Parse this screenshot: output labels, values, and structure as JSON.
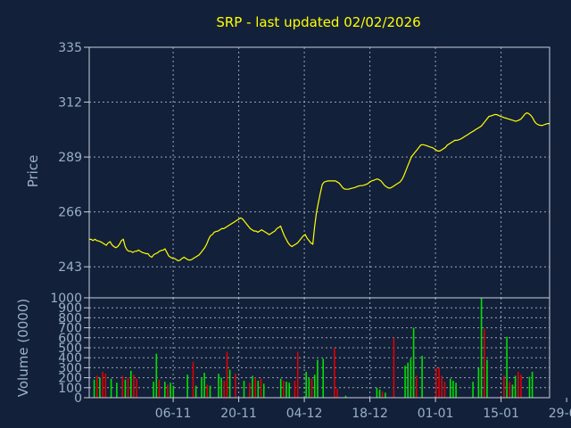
{
  "chart_data": [
    {
      "type": "line",
      "title": "SRP - last updated 02/02/2026",
      "ylabel": "Price",
      "ylim": [
        230,
        335
      ],
      "yticks": [
        243,
        266,
        289,
        312,
        335
      ],
      "grid": true,
      "line_color": "#ffff00",
      "x_index_range": [
        0,
        64
      ],
      "x_tick_index": [
        6,
        16,
        26,
        36,
        46,
        56,
        66
      ],
      "xtick_labels": [
        "06-11",
        "20-11",
        "04-12",
        "18-12",
        "01-01",
        "15-01",
        "29-01"
      ],
      "series": [
        {
          "values": [
            254.5,
            254.5,
            254,
            254.5,
            254,
            253.8,
            253.5,
            253,
            252.5,
            252,
            253,
            253.5,
            252.2,
            251.5,
            251,
            251.5,
            252.5,
            254,
            254.5,
            251.5,
            250,
            249.5,
            249.5,
            249,
            249.5,
            249.5,
            250,
            249.5,
            249,
            248.8,
            248.5,
            248.5,
            247.5,
            247,
            248,
            248.5,
            248.8,
            249.5,
            249.8,
            250,
            250.5,
            249,
            247.5,
            247,
            246.5,
            246.5,
            246,
            245.5,
            245.8,
            246.5,
            247,
            246.5,
            246,
            245.8,
            246,
            246.5,
            247,
            247.5,
            248,
            249,
            250,
            251,
            252.5,
            254.5,
            256,
            256.5,
            257.5,
            257.8,
            258,
            258.5,
            259,
            259,
            259.5,
            260,
            260.5,
            261,
            261.5,
            262,
            262.5,
            263,
            263.5,
            263,
            262,
            261,
            260,
            259,
            258.5,
            258,
            258,
            257.5,
            258,
            258.5,
            258,
            257.5,
            257,
            256.5,
            257,
            257.5,
            258,
            259,
            259.5,
            260,
            258,
            256,
            254.5,
            253,
            252,
            251.5,
            252,
            252.5,
            253,
            254,
            255,
            256,
            256.5,
            255,
            254,
            253,
            252.5,
            260,
            266,
            270,
            274,
            277.5,
            278.5,
            278.8,
            279,
            279,
            279,
            279,
            279,
            278.5,
            278,
            277,
            276,
            275.5,
            275.5,
            275.5,
            275.8,
            276,
            276.2,
            276.5,
            276.8,
            277,
            277,
            277.2,
            277.5,
            277.8,
            278.5,
            279,
            279.2,
            279.5,
            279.8,
            279.5,
            279,
            278,
            277,
            276.5,
            276,
            276,
            276.5,
            277,
            277.5,
            278,
            278.5,
            279.5,
            281,
            283,
            285,
            287,
            289,
            290,
            291,
            292,
            293,
            294,
            294.2,
            294,
            293.8,
            293.5,
            293.2,
            293,
            292.5,
            292,
            291.5,
            291.5,
            292,
            292.5,
            293,
            294,
            294.5,
            295,
            295.5,
            296,
            296,
            296.2,
            296.5,
            297,
            297.5,
            298,
            298.5,
            299,
            299.5,
            300,
            300.5,
            301,
            301.5,
            302,
            303,
            304,
            305,
            306,
            306.2,
            306.5,
            306.8,
            306.8,
            306.5,
            306,
            305.8,
            305.5,
            305.3,
            305,
            304.8,
            304.5,
            304.3,
            304,
            304.2,
            304.5,
            305,
            306,
            307,
            307.5,
            307.2,
            306.5,
            305.5,
            304,
            303,
            302.5,
            302.3,
            302.2,
            302.5,
            302.8,
            303,
            303
          ],
          "stride": 0.25
        }
      ]
    },
    {
      "type": "bar",
      "ylabel": "Volume (0000)",
      "ylim": [
        0,
        1000
      ],
      "yticks": [
        0,
        100,
        200,
        300,
        400,
        500,
        600,
        700,
        800,
        900,
        1000
      ],
      "grid": true,
      "up_color": "#00e000",
      "down_color": "#e00000",
      "x_index_range": [
        0,
        64
      ],
      "x_tick_index": [
        6,
        16,
        26,
        36,
        46,
        56,
        66
      ],
      "xtick_labels": [
        "06-11",
        "20-11",
        "04-12",
        "18-12",
        "01-01",
        "15-01",
        "29-01"
      ],
      "bars": [
        {
          "i": 0.2,
          "v": 180,
          "up": true
        },
        {
          "i": 0.6,
          "v": 220,
          "up": false
        },
        {
          "i": 1.0,
          "v": 200,
          "up": true
        },
        {
          "i": 1.4,
          "v": 260,
          "up": false
        },
        {
          "i": 1.8,
          "v": 240,
          "up": false
        },
        {
          "i": 2.6,
          "v": 190,
          "up": true
        },
        {
          "i": 3.4,
          "v": 150,
          "up": true
        },
        {
          "i": 4.2,
          "v": 220,
          "up": false
        },
        {
          "i": 4.6,
          "v": 180,
          "up": true
        },
        {
          "i": 5.0,
          "v": 200,
          "up": false
        },
        {
          "i": 5.4,
          "v": 270,
          "up": true
        },
        {
          "i": 5.8,
          "v": 230,
          "up": false
        },
        {
          "i": 6.2,
          "v": 190,
          "up": false
        },
        {
          "i": 8.6,
          "v": 160,
          "up": true
        },
        {
          "i": 9.0,
          "v": 440,
          "up": true
        },
        {
          "i": 9.4,
          "v": 180,
          "up": false
        },
        {
          "i": 10.2,
          "v": 160,
          "up": true
        },
        {
          "i": 10.6,
          "v": 130,
          "up": false
        },
        {
          "i": 11.0,
          "v": 150,
          "up": true
        },
        {
          "i": 11.4,
          "v": 120,
          "up": true
        },
        {
          "i": 13.4,
          "v": 230,
          "up": true
        },
        {
          "i": 14.2,
          "v": 360,
          "up": false
        },
        {
          "i": 14.6,
          "v": 120,
          "up": true
        },
        {
          "i": 15.4,
          "v": 200,
          "up": true
        },
        {
          "i": 15.8,
          "v": 250,
          "up": true
        },
        {
          "i": 16.2,
          "v": 130,
          "up": false
        },
        {
          "i": 16.6,
          "v": 120,
          "up": true
        },
        {
          "i": 17.8,
          "v": 240,
          "up": true
        },
        {
          "i": 18.2,
          "v": 200,
          "up": true
        },
        {
          "i": 18.6,
          "v": 170,
          "up": false
        },
        {
          "i": 19.0,
          "v": 460,
          "up": false
        },
        {
          "i": 19.4,
          "v": 280,
          "up": true
        },
        {
          "i": 20.2,
          "v": 240,
          "up": false
        },
        {
          "i": 21.4,
          "v": 170,
          "up": true
        },
        {
          "i": 22.2,
          "v": 150,
          "up": false
        },
        {
          "i": 22.6,
          "v": 220,
          "up": true
        },
        {
          "i": 23.0,
          "v": 200,
          "up": false
        },
        {
          "i": 23.4,
          "v": 170,
          "up": true
        },
        {
          "i": 23.8,
          "v": 190,
          "up": false
        },
        {
          "i": 24.2,
          "v": 140,
          "up": true
        },
        {
          "i": 26.6,
          "v": 190,
          "up": true
        },
        {
          "i": 27.0,
          "v": 170,
          "up": false
        },
        {
          "i": 27.4,
          "v": 160,
          "up": true
        },
        {
          "i": 27.8,
          "v": 150,
          "up": true
        },
        {
          "i": 28.6,
          "v": 170,
          "up": false
        },
        {
          "i": 29.0,
          "v": 460,
          "up": false
        },
        {
          "i": 30.2,
          "v": 260,
          "up": true
        },
        {
          "i": 30.6,
          "v": 200,
          "up": true
        },
        {
          "i": 31.0,
          "v": 190,
          "up": false
        },
        {
          "i": 31.4,
          "v": 230,
          "up": true
        },
        {
          "i": 31.8,
          "v": 380,
          "up": true
        },
        {
          "i": 32.6,
          "v": 390,
          "up": true
        },
        {
          "i": 34.2,
          "v": 500,
          "up": false
        },
        {
          "i": 34.6,
          "v": 90,
          "up": false
        },
        {
          "i": 35.8,
          "v": 20,
          "up": true
        },
        {
          "i": 40.2,
          "v": 100,
          "up": true
        },
        {
          "i": 40.6,
          "v": 80,
          "up": true
        },
        {
          "i": 41.0,
          "v": 60,
          "up": false
        },
        {
          "i": 41.4,
          "v": 50,
          "up": true
        },
        {
          "i": 42.6,
          "v": 600,
          "up": false
        },
        {
          "i": 44.2,
          "v": 320,
          "up": true
        },
        {
          "i": 44.6,
          "v": 350,
          "up": true
        },
        {
          "i": 45.0,
          "v": 390,
          "up": true
        },
        {
          "i": 45.4,
          "v": 700,
          "up": true
        },
        {
          "i": 45.8,
          "v": 220,
          "up": false
        },
        {
          "i": 46.6,
          "v": 420,
          "up": true
        },
        {
          "i": 48.6,
          "v": 300,
          "up": false
        },
        {
          "i": 49.0,
          "v": 300,
          "up": false
        },
        {
          "i": 49.4,
          "v": 220,
          "up": false
        },
        {
          "i": 49.8,
          "v": 160,
          "up": false
        },
        {
          "i": 50.6,
          "v": 190,
          "up": true
        },
        {
          "i": 51.0,
          "v": 170,
          "up": true
        },
        {
          "i": 51.4,
          "v": 150,
          "up": true
        },
        {
          "i": 53.8,
          "v": 160,
          "up": true
        },
        {
          "i": 54.6,
          "v": 300,
          "up": true
        },
        {
          "i": 55.0,
          "v": 1000,
          "up": true
        },
        {
          "i": 55.4,
          "v": 690,
          "up": false
        },
        {
          "i": 55.8,
          "v": 380,
          "up": true
        },
        {
          "i": 58.2,
          "v": 220,
          "up": false
        },
        {
          "i": 58.6,
          "v": 610,
          "up": true
        },
        {
          "i": 59.0,
          "v": 160,
          "up": false
        },
        {
          "i": 59.4,
          "v": 130,
          "up": true
        },
        {
          "i": 59.8,
          "v": 220,
          "up": true
        },
        {
          "i": 60.2,
          "v": 260,
          "up": false
        },
        {
          "i": 60.6,
          "v": 230,
          "up": false
        },
        {
          "i": 61.8,
          "v": 210,
          "up": true
        },
        {
          "i": 62.2,
          "v": 260,
          "up": true
        }
      ]
    }
  ]
}
